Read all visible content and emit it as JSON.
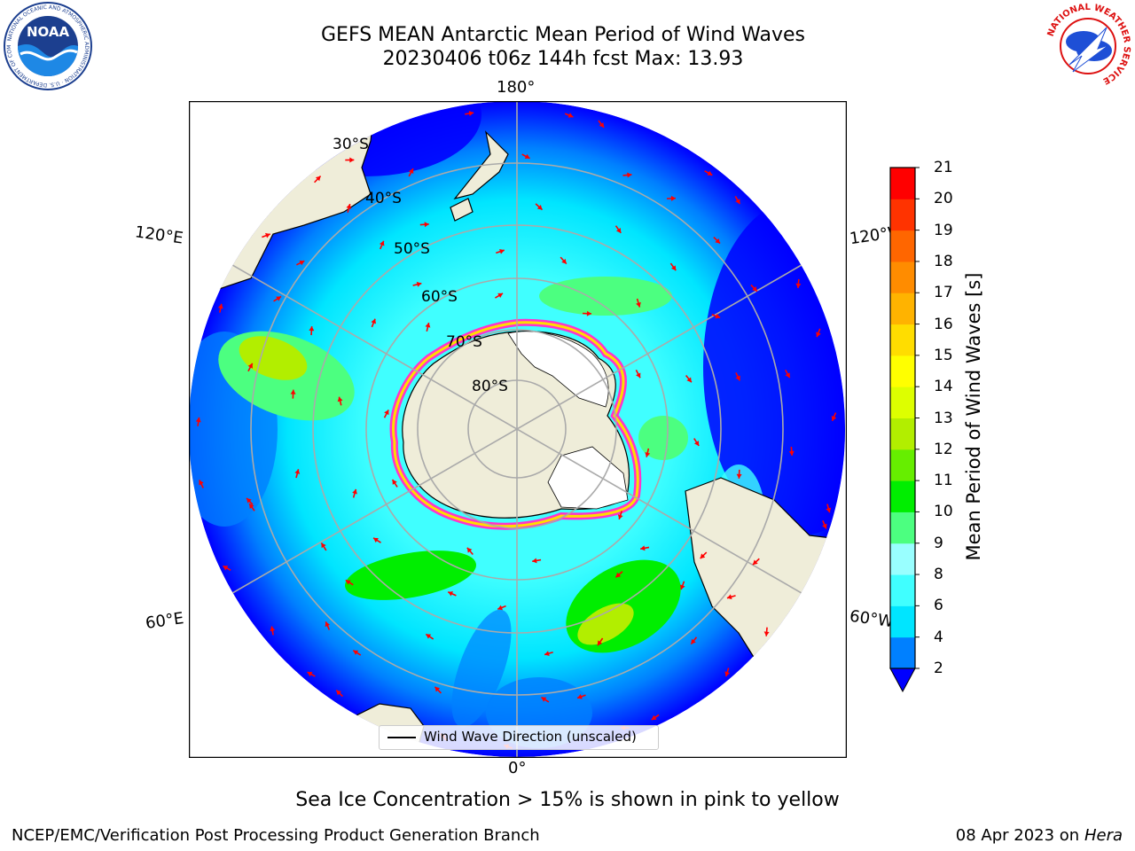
{
  "header": {
    "title_line1": "GEFS MEAN Antarctic Mean Period of Wind Waves",
    "title_line2": "20230406 t06z 144h fcst   Max: 13.93"
  },
  "logos": {
    "left": {
      "name": "NOAA",
      "ring_text": "NATIONAL OCEANIC AND ATMOSPHERIC ADMINISTRATION · U.S. DEPARTMENT OF COMMERCE"
    },
    "right": {
      "ring_text": "NATIONAL WEATHER SERVICE"
    }
  },
  "map": {
    "projection": "south-polar-stereographic",
    "lon_labels": {
      "top": "180°",
      "bottom": "0°",
      "upper_left": "120°E",
      "upper_right": "120°W",
      "lower_left": "60°E",
      "lower_right": "60°W"
    },
    "lat_labels": [
      "30°S",
      "40°S",
      "50°S",
      "60°S",
      "70°S",
      "80°S"
    ],
    "legend_text": "Wind Wave Direction (unscaled)",
    "colors": {
      "land": "#efedd9",
      "ocean_deep": "#0000ff",
      "ice_edge": "#ff33cc",
      "arrow": "#ff0000"
    }
  },
  "colorbar": {
    "label": "Mean Period of Wind Waves [s]",
    "ticks": [
      "2",
      "4",
      "6",
      "8",
      "9",
      "10",
      "11",
      "12",
      "13",
      "14",
      "15",
      "16",
      "17",
      "18",
      "19",
      "20",
      "21"
    ],
    "colors": [
      "#0000ff",
      "#0080ff",
      "#00e5ff",
      "#40ffff",
      "#99ffff",
      "#4cff80",
      "#00ee00",
      "#66ee00",
      "#b2ee00",
      "#ddff00",
      "#ffff00",
      "#ffdd00",
      "#ffb300",
      "#ff8c00",
      "#ff6600",
      "#ff3300",
      "#ff0000"
    ],
    "extend": "min"
  },
  "notes": {
    "ice": "Sea Ice Concentration > 15% is shown in pink to yellow"
  },
  "footer": {
    "left": "NCEP/EMC/Verification Post Processing Product Generation Branch",
    "right_date": "08 Apr 2023 on ",
    "right_host": "Hera"
  }
}
